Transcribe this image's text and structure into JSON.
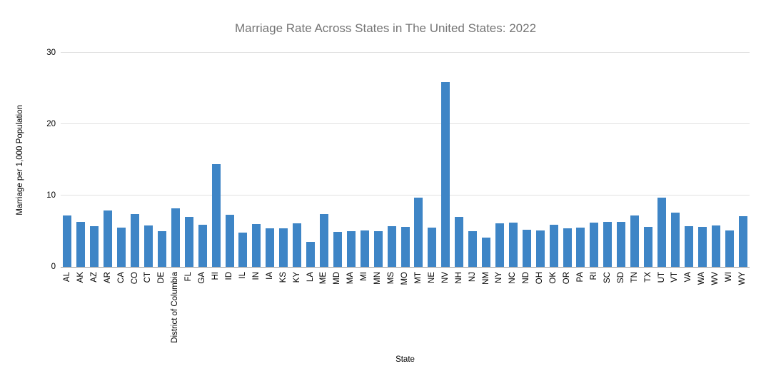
{
  "chart_data": {
    "type": "bar",
    "title": "Marriage Rate Across States in The United States: 2022",
    "xlabel": "State",
    "ylabel": "Marriage per 1,000 Population",
    "ylim": [
      0,
      30
    ],
    "yticks": [
      0,
      10,
      20,
      30
    ],
    "grid": true,
    "legend": false,
    "categories": [
      "AL",
      "AK",
      "AZ",
      "AR",
      "CA",
      "CO",
      "CT",
      "DE",
      "District of Columbia",
      "FL",
      "GA",
      "HI",
      "ID",
      "IL",
      "IN",
      "IA",
      "KS",
      "KY",
      "LA",
      "ME",
      "MD",
      "MA",
      "MI",
      "MN",
      "MS",
      "MO",
      "MT",
      "NE",
      "NV",
      "NH",
      "NJ",
      "NM",
      "NY",
      "NC",
      "ND",
      "OH",
      "OK",
      "OR",
      "PA",
      "RI",
      "SC",
      "SD",
      "TN",
      "TX",
      "UT",
      "VT",
      "VA",
      "WA",
      "WV",
      "WI",
      "WY"
    ],
    "values": [
      7.2,
      6.3,
      5.7,
      7.9,
      5.5,
      7.4,
      5.8,
      5.0,
      8.2,
      7.0,
      5.9,
      14.4,
      7.3,
      4.8,
      6.0,
      5.4,
      5.4,
      6.1,
      3.5,
      7.4,
      4.9,
      5.0,
      5.1,
      5.0,
      5.7,
      5.6,
      9.7,
      5.5,
      25.9,
      7.0,
      5.0,
      4.1,
      6.1,
      6.2,
      5.2,
      5.1,
      5.9,
      5.4,
      5.5,
      6.2,
      6.3,
      6.3,
      7.2,
      5.6,
      9.7,
      7.6,
      5.7,
      5.6,
      5.8,
      5.1,
      7.1
    ]
  },
  "colors": {
    "bar": "#3e85c6",
    "title_text": "#757575",
    "axis_text": "#000000",
    "gridline": "#e0e0e0",
    "baseline": "#999999",
    "background": "#ffffff"
  }
}
